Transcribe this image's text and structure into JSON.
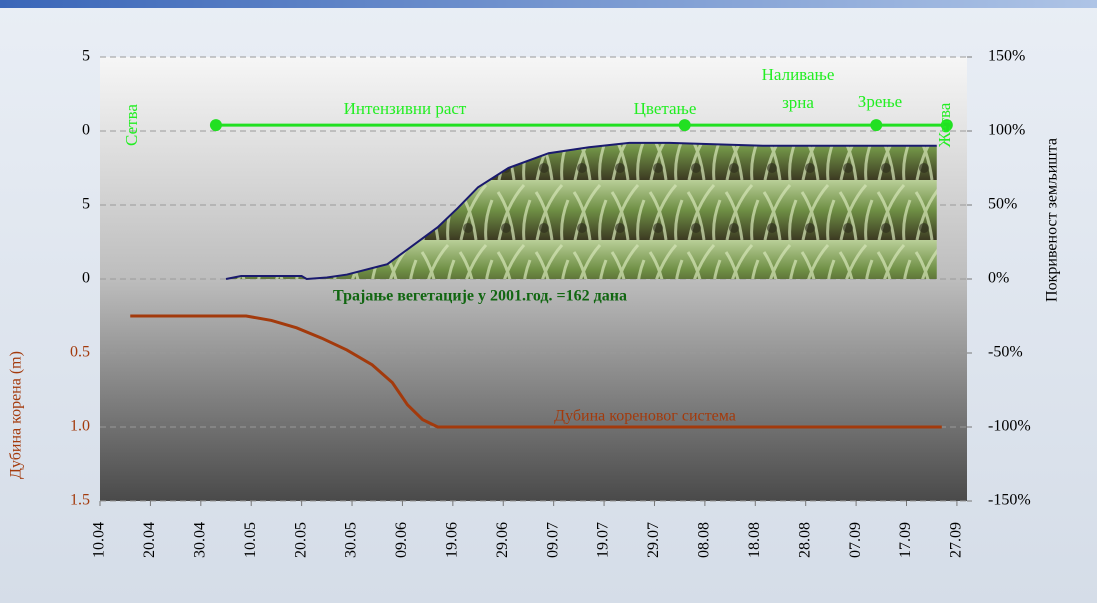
{
  "chart_data": {
    "type": "line",
    "categories": [
      "10.04",
      "20.04",
      "30.04",
      "10.05",
      "20.05",
      "30.05",
      "09.06",
      "19.06",
      "29.06",
      "09.07",
      "19.07",
      "29.07",
      "08.08",
      "18.08",
      "28.08",
      "07.09",
      "17.09",
      "27.09"
    ],
    "xlim": [
      "10.04",
      "29.09"
    ],
    "ylim": [
      -1.5,
      1.5
    ],
    "y_inverted": true,
    "yticks": [
      {
        "value": -1.5,
        "label": "5"
      },
      {
        "value": -1,
        "label": "0"
      },
      {
        "value": -0.5,
        "label": "5"
      },
      0,
      {
        "value": 0.5,
        "label": "0.5"
      },
      {
        "value": 1,
        "label": "1.0"
      },
      1.5
    ],
    "y2lim": [
      -150,
      150
    ],
    "y2ticks": [
      {
        "value": 150,
        "label": "150%"
      },
      {
        "value": 100,
        "label": "100%"
      },
      {
        "value": 50,
        "label": "50%"
      },
      {
        "value": 0,
        "label": "0%"
      },
      {
        "value": -50,
        "label": "-50%"
      },
      {
        "value": -100,
        "label": "-100%"
      },
      {
        "value": -150,
        "label": "-150%"
      }
    ],
    "y_label": "Дубина корена (m)",
    "y2_label": "Покривеност земљишта",
    "grid": true,
    "series": [
      {
        "name": "Дубина кореновог система",
        "color": "#a33a0c",
        "x": [
          "16.04",
          "09.05",
          "14.05",
          "19.05",
          "24.05",
          "29.05",
          "03.06",
          "07.06",
          "10.06",
          "13.06",
          "16.06",
          "24.09"
        ],
        "values": [
          0.25,
          0.25,
          0.28,
          0.33,
          0.4,
          0.48,
          0.58,
          0.7,
          0.85,
          0.95,
          1.0,
          1.0
        ]
      },
      {
        "color": "#1a1a6e",
        "axis": "y2",
        "fill": "area",
        "x": [
          "05.05",
          "08.05",
          "20.05",
          "21.05",
          "25.05",
          "29.05",
          "06.06",
          "10.06",
          "16.06",
          "20.06",
          "24.06",
          "30.06",
          "08.07",
          "16.07",
          "24.07",
          "01.08",
          "20.08",
          "23.09"
        ],
        "values": [
          0,
          2,
          2,
          0,
          1,
          3,
          10,
          20,
          35,
          48,
          62,
          75,
          85,
          89,
          92,
          92,
          90,
          90
        ]
      },
      {
        "color": "#22e022",
        "axis": "y2",
        "markers": true,
        "x": [
          "03.05",
          "04.08",
          "11.09",
          "25.09"
        ],
        "values": [
          104,
          104,
          104,
          104
        ]
      }
    ],
    "annotations": [
      "Сетва",
      "Интензивни раст",
      "Цветање",
      "Наливање",
      "зрна",
      "Зрење",
      "Жетва"
    ],
    "note": "Трајање вегетације у 2001.год. =162 дана"
  }
}
